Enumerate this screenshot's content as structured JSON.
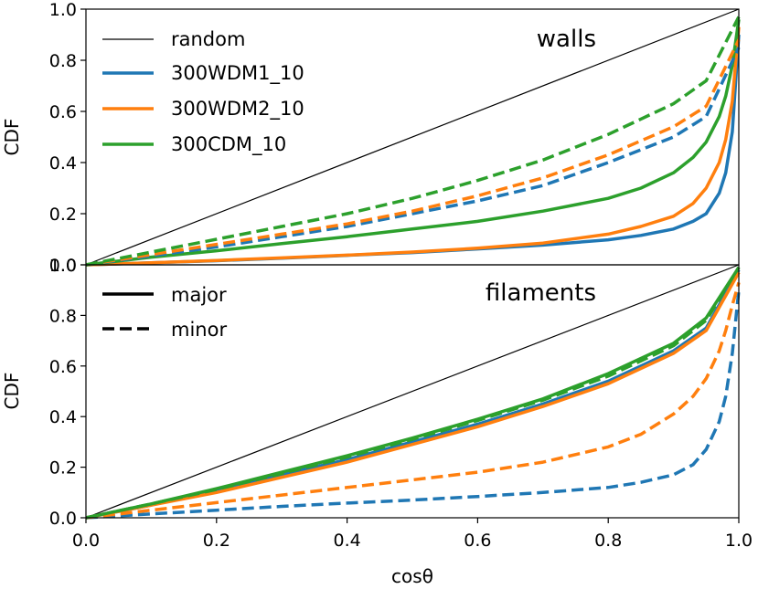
{
  "chart_data": {
    "type": "line",
    "xlabel": "cosθ",
    "xlim": [
      0.0,
      1.0
    ],
    "xticks": [
      "0.0",
      "0.2",
      "0.4",
      "0.6",
      "0.8",
      "1.0"
    ],
    "x_values": [
      0.0,
      0.2,
      0.4,
      0.6,
      0.8,
      1.0
    ],
    "ylim": [
      0.0,
      1.0
    ],
    "y_values": [
      0.0,
      0.2,
      0.4,
      0.6,
      0.8,
      1.0
    ],
    "colors": {
      "random": "#000000",
      "300WDM1_10": "#1f77b4",
      "300WDM2_10": "#ff7f0e",
      "300CDM_10": "#2ca02c"
    },
    "panels": [
      {
        "title": "walls",
        "ylabel": "CDF",
        "yticks": [
          "0.0",
          "0.2",
          "0.4",
          "0.6",
          "0.8",
          "1.0"
        ],
        "legend": {
          "placement": "upper-left",
          "entries": [
            {
              "label": "random",
              "color": "#000000",
              "style": "thin"
            },
            {
              "label": "300WDM1_10",
              "color": "#1f77b4",
              "style": "solid"
            },
            {
              "label": "300WDM2_10",
              "color": "#ff7f0e",
              "style": "solid"
            },
            {
              "label": "300CDM_10",
              "color": "#2ca02c",
              "style": "solid"
            }
          ]
        },
        "series": [
          {
            "name": "random",
            "color": "#000000",
            "style": "thin",
            "x": [
              0,
              1
            ],
            "y": [
              0,
              1
            ]
          },
          {
            "name": "300WDM1_10 major",
            "color": "#1f77b4",
            "style": "solid",
            "x": [
              0,
              0.1,
              0.2,
              0.3,
              0.4,
              0.5,
              0.6,
              0.7,
              0.8,
              0.85,
              0.9,
              0.93,
              0.95,
              0.97,
              0.98,
              0.99,
              1.0
            ],
            "y": [
              0,
              0.008,
              0.016,
              0.026,
              0.037,
              0.048,
              0.062,
              0.077,
              0.098,
              0.115,
              0.14,
              0.17,
              0.2,
              0.28,
              0.36,
              0.52,
              0.9
            ]
          },
          {
            "name": "300WDM2_10 major",
            "color": "#ff7f0e",
            "style": "solid",
            "x": [
              0,
              0.1,
              0.2,
              0.3,
              0.4,
              0.5,
              0.6,
              0.7,
              0.8,
              0.85,
              0.9,
              0.93,
              0.95,
              0.97,
              0.98,
              0.99,
              1.0
            ],
            "y": [
              0,
              0.008,
              0.017,
              0.027,
              0.038,
              0.05,
              0.065,
              0.085,
              0.12,
              0.15,
              0.19,
              0.24,
              0.3,
              0.4,
              0.49,
              0.64,
              0.93
            ]
          },
          {
            "name": "300CDM_10 major",
            "color": "#2ca02c",
            "style": "solid",
            "x": [
              0,
              0.1,
              0.2,
              0.3,
              0.4,
              0.5,
              0.6,
              0.7,
              0.8,
              0.85,
              0.9,
              0.93,
              0.95,
              0.97,
              0.98,
              0.99,
              1.0
            ],
            "y": [
              0,
              0.03,
              0.055,
              0.083,
              0.11,
              0.14,
              0.17,
              0.21,
              0.26,
              0.3,
              0.36,
              0.42,
              0.48,
              0.58,
              0.66,
              0.78,
              0.96
            ]
          },
          {
            "name": "300WDM1_10 minor",
            "color": "#1f77b4",
            "style": "dashed",
            "x": [
              0,
              0.1,
              0.2,
              0.3,
              0.4,
              0.5,
              0.6,
              0.7,
              0.8,
              0.9,
              0.95,
              1.0
            ],
            "y": [
              0,
              0.035,
              0.07,
              0.11,
              0.15,
              0.2,
              0.25,
              0.31,
              0.4,
              0.5,
              0.58,
              0.85
            ]
          },
          {
            "name": "300WDM2_10 minor",
            "color": "#ff7f0e",
            "style": "dashed",
            "x": [
              0,
              0.1,
              0.2,
              0.3,
              0.4,
              0.5,
              0.6,
              0.7,
              0.8,
              0.9,
              0.95,
              1.0
            ],
            "y": [
              0,
              0.04,
              0.08,
              0.12,
              0.16,
              0.21,
              0.27,
              0.34,
              0.43,
              0.54,
              0.62,
              0.88
            ]
          },
          {
            "name": "300CDM_10 minor",
            "color": "#2ca02c",
            "style": "dashed",
            "x": [
              0,
              0.1,
              0.2,
              0.3,
              0.4,
              0.5,
              0.6,
              0.7,
              0.8,
              0.9,
              0.95,
              1.0
            ],
            "y": [
              0,
              0.05,
              0.1,
              0.15,
              0.2,
              0.26,
              0.33,
              0.41,
              0.51,
              0.63,
              0.72,
              0.97
            ]
          }
        ]
      },
      {
        "title": "filaments",
        "ylabel": "CDF",
        "yticks": [
          "0.0",
          "0.2",
          "0.4",
          "0.6",
          "0.8",
          "1.0"
        ],
        "legend": {
          "placement": "upper-left",
          "entries": [
            {
              "label": "major",
              "color": "#000000",
              "style": "solid"
            },
            {
              "label": "minor",
              "color": "#000000",
              "style": "dashed"
            }
          ]
        },
        "series": [
          {
            "name": "random",
            "color": "#000000",
            "style": "thin",
            "x": [
              0,
              1
            ],
            "y": [
              0,
              1
            ]
          },
          {
            "name": "300WDM1_10 major",
            "color": "#1f77b4",
            "style": "solid",
            "x": [
              0,
              0.1,
              0.2,
              0.3,
              0.4,
              0.5,
              0.6,
              0.7,
              0.8,
              0.9,
              0.95,
              1.0
            ],
            "y": [
              0,
              0.05,
              0.11,
              0.17,
              0.23,
              0.3,
              0.37,
              0.45,
              0.54,
              0.66,
              0.75,
              0.98
            ]
          },
          {
            "name": "300WDM2_10 major",
            "color": "#ff7f0e",
            "style": "solid",
            "x": [
              0,
              0.1,
              0.2,
              0.3,
              0.4,
              0.5,
              0.6,
              0.7,
              0.8,
              0.9,
              0.95,
              1.0
            ],
            "y": [
              0,
              0.05,
              0.1,
              0.16,
              0.22,
              0.29,
              0.36,
              0.44,
              0.53,
              0.65,
              0.74,
              0.97
            ]
          },
          {
            "name": "300CDM_10 major",
            "color": "#2ca02c",
            "style": "solid",
            "x": [
              0,
              0.1,
              0.2,
              0.3,
              0.4,
              0.5,
              0.6,
              0.7,
              0.8,
              0.9,
              0.95,
              1.0
            ],
            "y": [
              0,
              0.055,
              0.115,
              0.18,
              0.245,
              0.315,
              0.39,
              0.47,
              0.57,
              0.69,
              0.79,
              0.99
            ]
          },
          {
            "name": "300WDM1_10 minor",
            "color": "#1f77b4",
            "style": "dashed",
            "x": [
              0,
              0.1,
              0.2,
              0.3,
              0.4,
              0.5,
              0.6,
              0.7,
              0.8,
              0.85,
              0.9,
              0.93,
              0.95,
              0.97,
              0.98,
              0.99,
              1.0
            ],
            "y": [
              0,
              0.015,
              0.03,
              0.045,
              0.058,
              0.07,
              0.084,
              0.1,
              0.12,
              0.14,
              0.17,
              0.21,
              0.27,
              0.38,
              0.48,
              0.65,
              0.9
            ]
          },
          {
            "name": "300WDM2_10 minor",
            "color": "#ff7f0e",
            "style": "dashed",
            "x": [
              0,
              0.1,
              0.2,
              0.3,
              0.4,
              0.5,
              0.6,
              0.7,
              0.8,
              0.85,
              0.9,
              0.93,
              0.95,
              0.97,
              0.98,
              0.99,
              1.0
            ],
            "y": [
              0,
              0.03,
              0.06,
              0.09,
              0.12,
              0.15,
              0.18,
              0.22,
              0.28,
              0.33,
              0.41,
              0.48,
              0.55,
              0.66,
              0.74,
              0.84,
              0.93
            ]
          },
          {
            "name": "300CDM_10 minor",
            "color": "#2ca02c",
            "style": "dashed",
            "x": [
              0,
              0.1,
              0.2,
              0.3,
              0.4,
              0.5,
              0.6,
              0.7,
              0.8,
              0.9,
              0.95,
              1.0
            ],
            "y": [
              0,
              0.055,
              0.112,
              0.175,
              0.24,
              0.31,
              0.385,
              0.465,
              0.56,
              0.68,
              0.78,
              0.99
            ]
          }
        ]
      }
    ]
  }
}
